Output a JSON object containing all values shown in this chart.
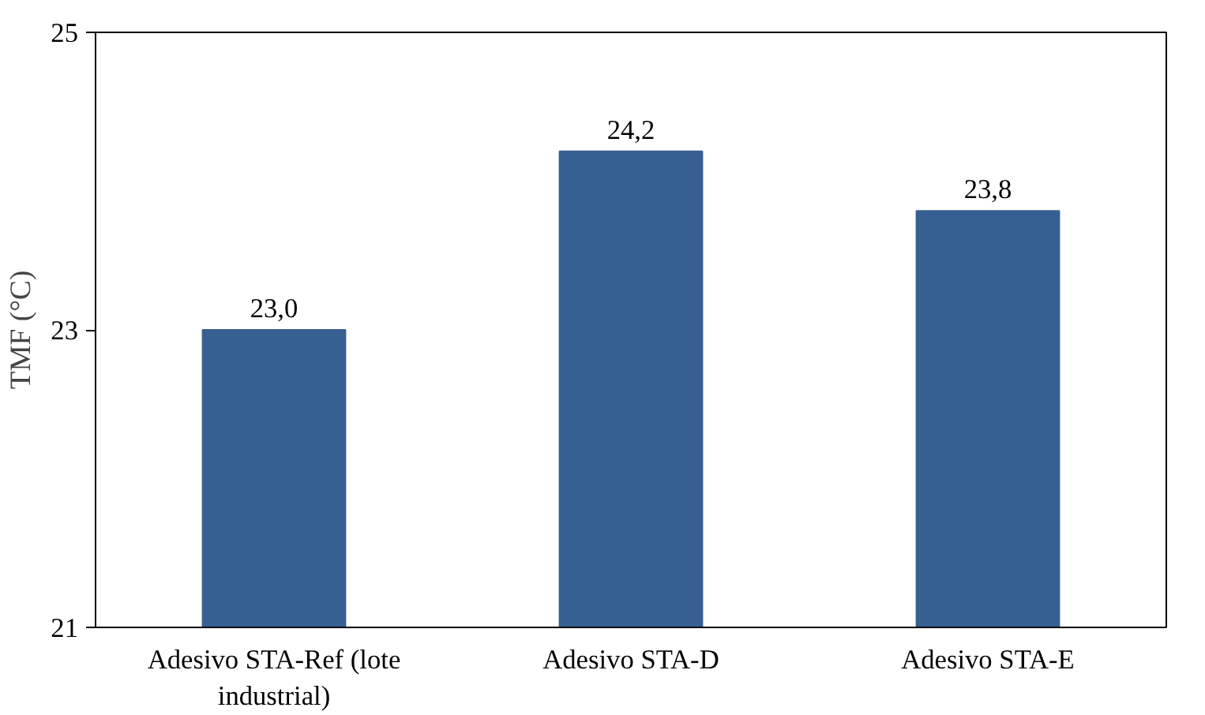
{
  "chart_data": {
    "type": "bar",
    "ylabel": "TMF (°C)",
    "categories": [
      "Adesivo STA-Ref (lote industrial)",
      "Adesivo STA-D",
      "Adesivo STA-E"
    ],
    "values": [
      23.0,
      24.2,
      23.8
    ],
    "value_labels": [
      "23,0",
      "24,2",
      "23,8"
    ],
    "color": "#376092",
    "ylim": [
      21,
      25
    ],
    "yticks": [
      21,
      23,
      25
    ],
    "grid": false
  }
}
